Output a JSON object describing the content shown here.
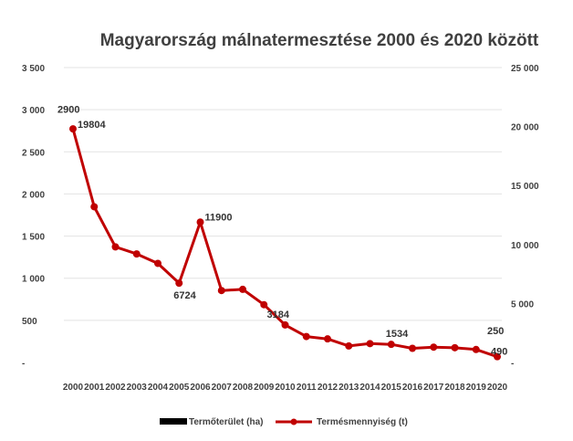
{
  "chart_data": {
    "type": "line",
    "title": "Magyarország málnatermesztése 2000 és 2020 között",
    "x": [
      "2000",
      "2001",
      "2002",
      "2003",
      "2004",
      "2005",
      "2006",
      "2007",
      "2008",
      "2009",
      "2010",
      "2011",
      "2012",
      "2013",
      "2014",
      "2015",
      "2016",
      "2017",
      "2018",
      "2019",
      "2020"
    ],
    "left_axis": {
      "ylim": [
        0,
        3500
      ],
      "ticks": [
        0,
        500,
        1000,
        1500,
        2000,
        2500,
        3000,
        3500
      ],
      "tick_labels": [
        "-",
        "500",
        "1 000",
        "1 500",
        "2 000",
        "2 500",
        "3 000",
        "3 500"
      ]
    },
    "right_axis": {
      "ylim": [
        0,
        25000
      ],
      "ticks": [
        0,
        5000,
        10000,
        15000,
        20000,
        25000
      ],
      "tick_labels": [
        "-",
        "5 000",
        "10 000",
        "15 000",
        "20 000",
        "25 000"
      ]
    },
    "series": [
      {
        "name": "Termőterület (ha)",
        "axis": "left",
        "color": "#000000",
        "values": [
          2900,
          null,
          null,
          null,
          null,
          null,
          null,
          null,
          null,
          null,
          null,
          null,
          null,
          null,
          null,
          null,
          null,
          null,
          null,
          null,
          250
        ]
      },
      {
        "name": "Termésmennyiség (t)",
        "axis": "right",
        "color": "#c00000",
        "values": [
          19804,
          13200,
          9800,
          9200,
          8400,
          6724,
          11900,
          6100,
          6200,
          4900,
          3184,
          2200,
          2000,
          1400,
          1600,
          1534,
          1200,
          1300,
          1250,
          1100,
          490
        ]
      }
    ],
    "data_labels": [
      {
        "text": "2900",
        "series": 0,
        "index": 0
      },
      {
        "text": "19804",
        "series": 1,
        "index": 0
      },
      {
        "text": "6724",
        "series": 1,
        "index": 5
      },
      {
        "text": "11900",
        "series": 1,
        "index": 6
      },
      {
        "text": "3184",
        "series": 1,
        "index": 10
      },
      {
        "text": "1534",
        "series": 1,
        "index": 15
      },
      {
        "text": "250",
        "series": 0,
        "index": 20
      },
      {
        "text": "490",
        "series": 1,
        "index": 20
      }
    ],
    "grid": true,
    "legend_position": "bottom"
  }
}
